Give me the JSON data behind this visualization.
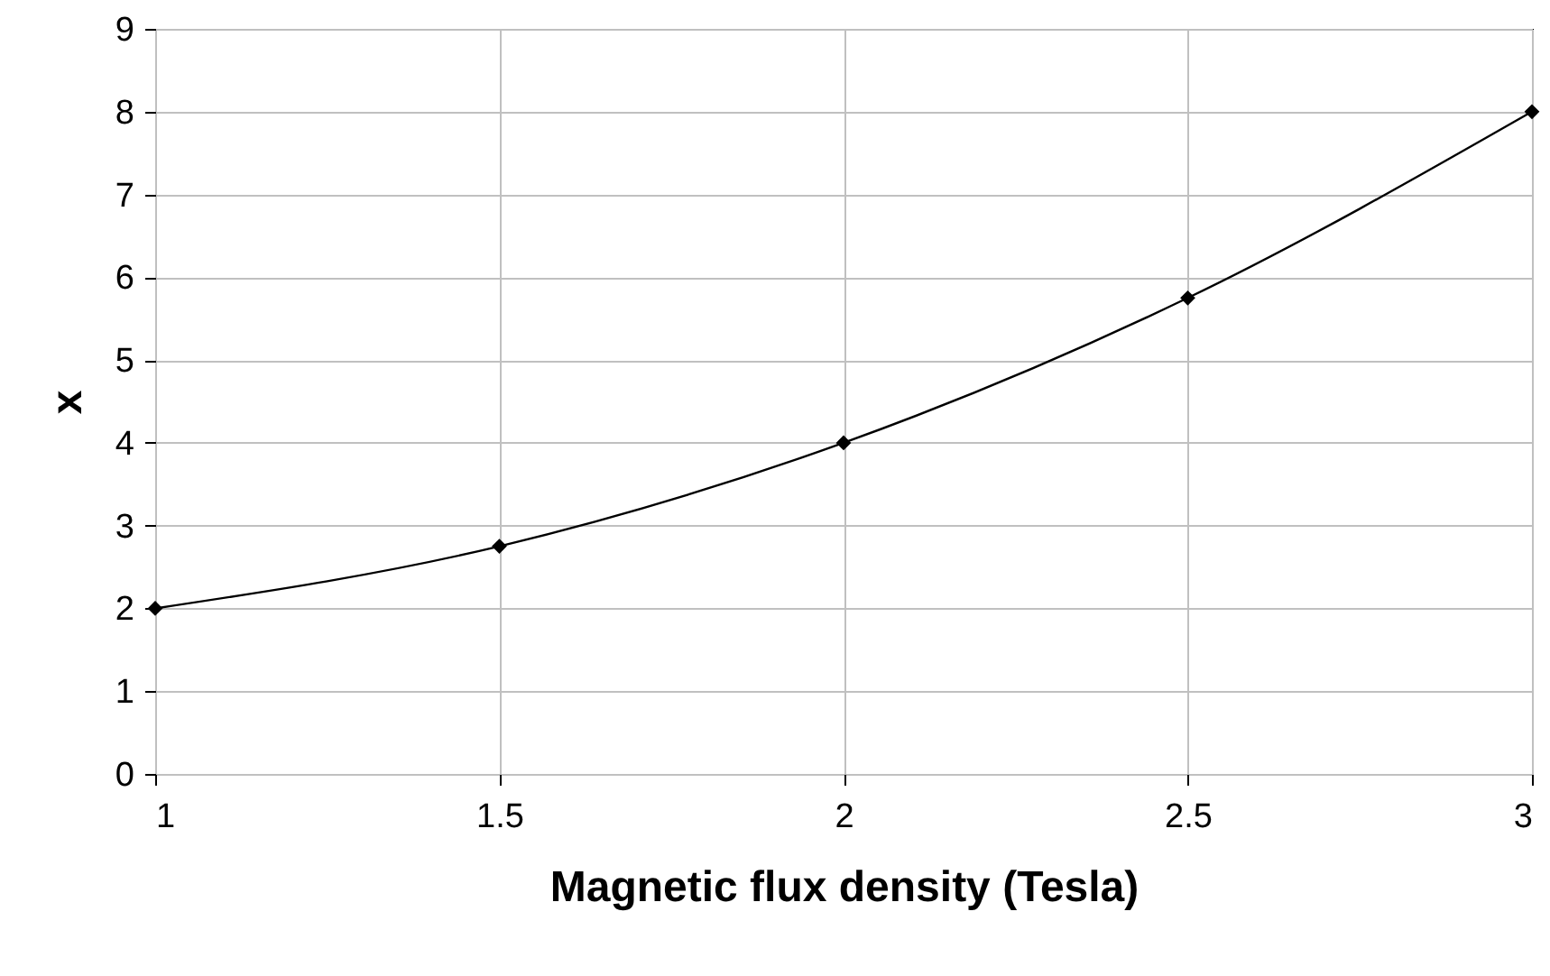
{
  "chart_data": {
    "type": "line",
    "xlabel": "Magnetic flux density (Tesla)",
    "ylabel": "x",
    "x": [
      1,
      1.5,
      2,
      2.5,
      3
    ],
    "series": [
      {
        "color": "#000000",
        "values": [
          2,
          2.75,
          4,
          5.75,
          8
        ]
      }
    ],
    "xlim": [
      1,
      3
    ],
    "xticks": [
      1,
      1.5,
      2,
      2.5,
      3
    ],
    "ylim": [
      0,
      9
    ],
    "yticks": [
      0,
      1,
      2,
      3,
      4,
      5,
      6,
      7,
      8,
      9
    ],
    "grid": true,
    "marker": "diamond",
    "line_style": "solid"
  }
}
